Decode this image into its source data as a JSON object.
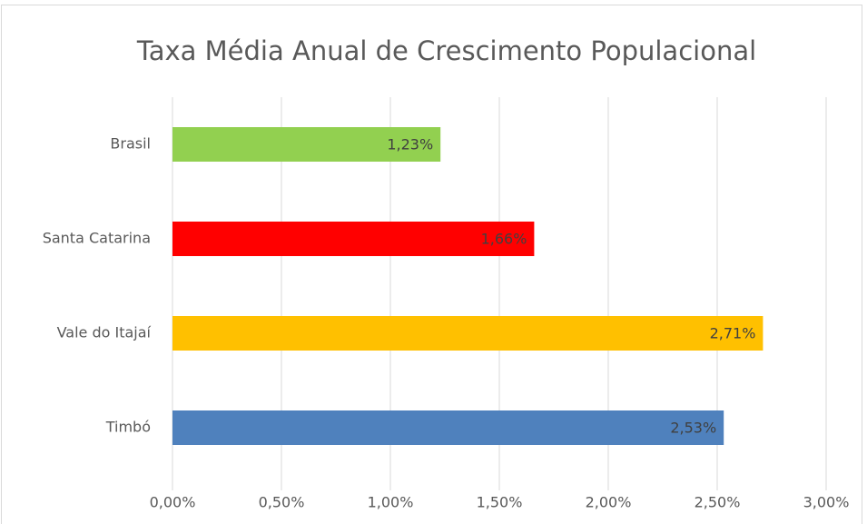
{
  "chart_data": {
    "type": "hbar",
    "title": "Taxa Média Anual de Crescimento Populacional",
    "categories": [
      "Brasil",
      "Santa Catarina",
      "Vale do Itajaí",
      "Timbó"
    ],
    "values": [
      1.23,
      1.66,
      2.71,
      2.53
    ],
    "value_labels": [
      "1,23%",
      "1,66%",
      "2,71%",
      "2,53%"
    ],
    "colors": [
      "#92d050",
      "#ff0000",
      "#ffc000",
      "#4f81bd"
    ],
    "xlim": [
      0,
      3
    ],
    "xticks": [
      {
        "value": 0,
        "label": "0,00%"
      },
      {
        "value": 0.5,
        "label": "0,50%"
      },
      {
        "value": 1,
        "label": "1,00%"
      },
      {
        "value": 1.5,
        "label": "1,50%"
      },
      {
        "value": 2,
        "label": "2,00%"
      },
      {
        "value": 2.5,
        "label": "2,50%"
      },
      {
        "value": 3,
        "label": "3,00%"
      }
    ],
    "grid": true
  }
}
